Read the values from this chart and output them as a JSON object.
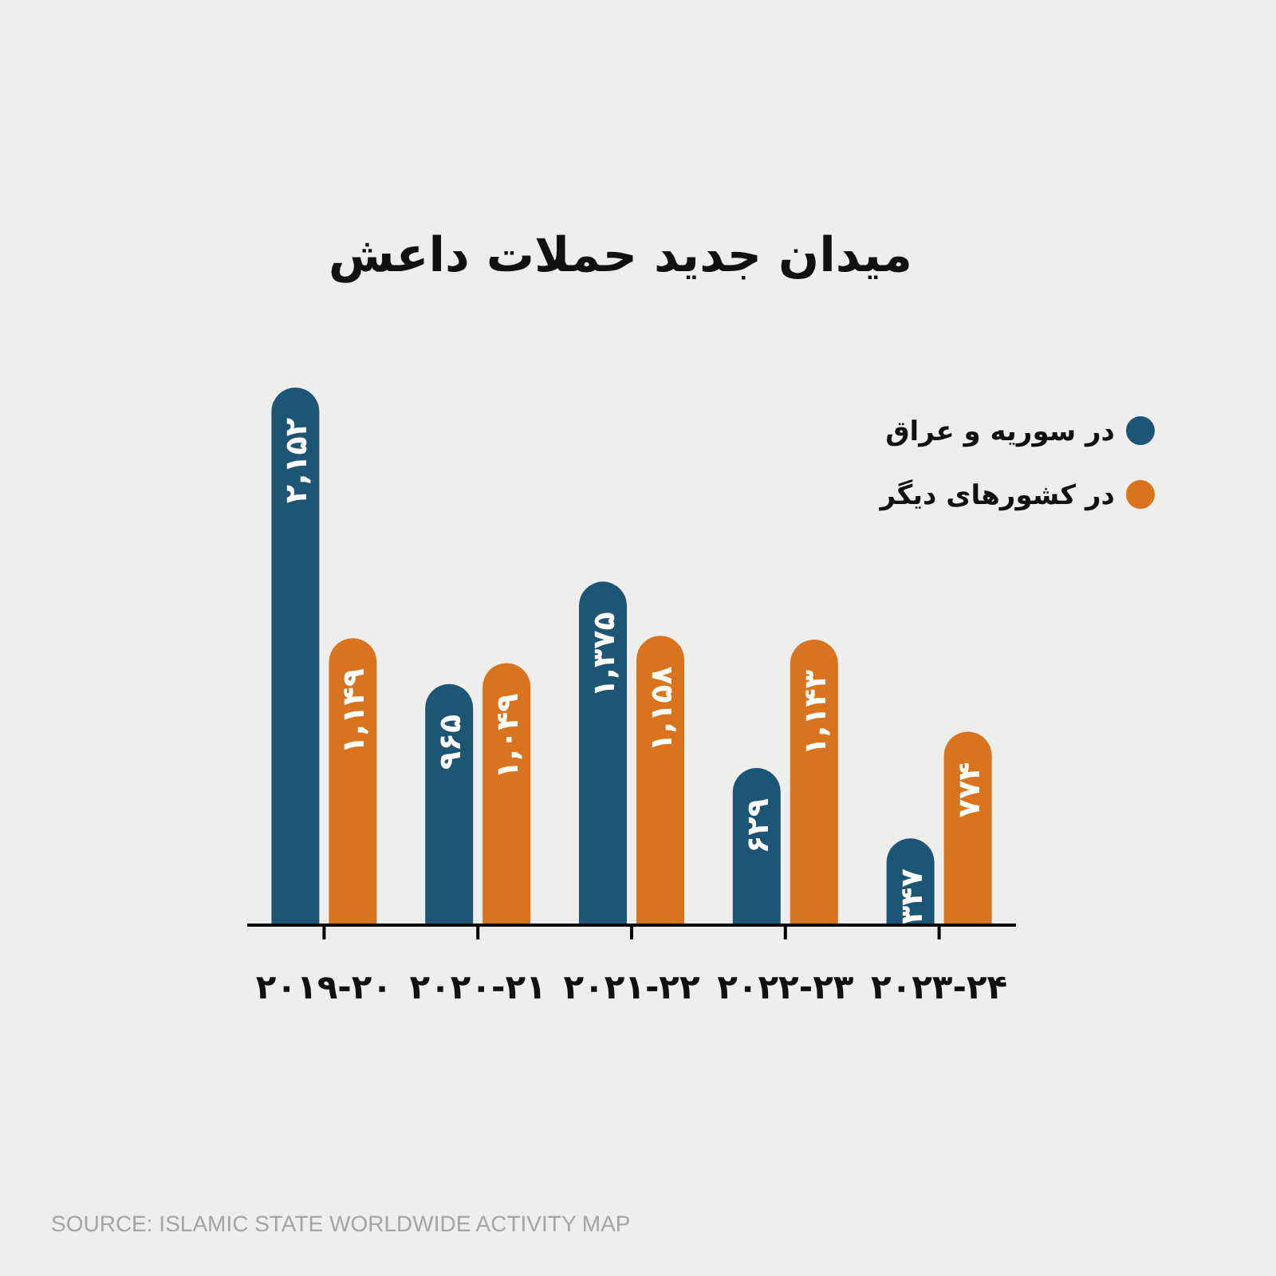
{
  "chart_data": {
    "type": "bar",
    "title": "میدان جدید حملات داعش",
    "categories": [
      "۲۰۱۹-۲۰",
      "۲۰۲۰-۲۱",
      "۲۰۲۱-۲۲",
      "۲۰۲۲-۲۳",
      "۲۰۲۳-۲۴"
    ],
    "series": [
      {
        "name": "در سوریه و عراق",
        "color": "#1d5574",
        "values": [
          2152,
          965,
          1375,
          629,
          347
        ],
        "value_labels": [
          "۲,۱۵۲",
          "۹۶۵",
          "۱,۳۷۵",
          "۶۲۹",
          "۳۴۷"
        ]
      },
      {
        "name": "در کشورهای دیگر",
        "color": "#d9731e",
        "values": [
          1149,
          1049,
          1158,
          1143,
          774
        ],
        "value_labels": [
          "۱,۱۴۹",
          "۱,۰۴۹",
          "۱,۱۵۸",
          "۱,۱۴۳",
          "۷۷۴"
        ]
      }
    ],
    "legend": "top right",
    "annotations": [
      "SOURCE: ISLAMIC STATE WORLDWIDE ACTIVITY MAP"
    ]
  }
}
